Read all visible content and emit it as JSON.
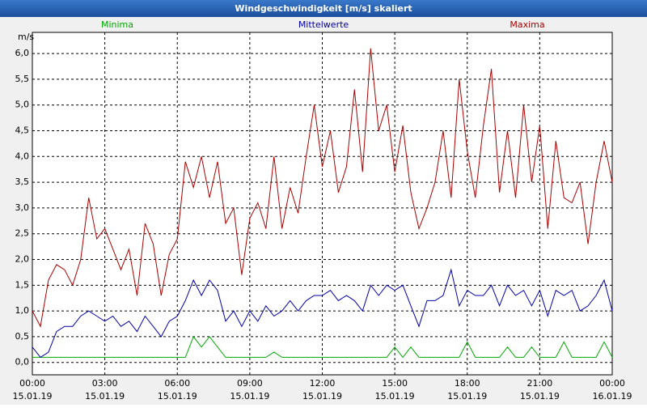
{
  "chart_data": {
    "type": "line",
    "title": "Windgeschwindigkeit [m/s] skaliert",
    "y_unit": "m/s",
    "x": [
      0,
      20,
      40,
      60,
      80,
      100,
      120,
      140,
      160,
      180,
      200,
      220,
      240,
      260,
      280,
      300,
      320,
      340,
      360,
      380,
      400,
      420,
      440,
      460,
      480,
      500,
      520,
      540,
      560,
      580,
      600,
      620,
      640,
      660,
      680,
      700,
      720,
      740,
      760,
      780,
      800,
      820,
      840,
      860,
      880,
      900,
      920,
      940,
      960,
      980,
      1000,
      1020,
      1040,
      1060,
      1080,
      1100,
      1120,
      1140,
      1160,
      1180,
      1200,
      1220,
      1240,
      1260,
      1280,
      1300,
      1320,
      1340,
      1360,
      1380,
      1400,
      1420,
      1440
    ],
    "xlim": [
      0,
      1440
    ],
    "xticks": [
      {
        "value": 0,
        "label": "00:00"
      },
      {
        "value": 180,
        "label": "03:00"
      },
      {
        "value": 360,
        "label": "06:00"
      },
      {
        "value": 540,
        "label": "09:00"
      },
      {
        "value": 720,
        "label": "12:00"
      },
      {
        "value": 900,
        "label": "15:00"
      },
      {
        "value": 1080,
        "label": "18:00"
      },
      {
        "value": 1260,
        "label": "21:00"
      },
      {
        "value": 1440,
        "label": "00:00"
      }
    ],
    "xtick_dates": [
      "15.01.19",
      "15.01.19",
      "15.01.19",
      "15.01.19",
      "15.01.19",
      "15.01.19",
      "15.01.19",
      "15.01.19",
      "16.01.19"
    ],
    "ylim": [
      -0.24,
      6.41
    ],
    "yticks": [
      {
        "value": 0,
        "label": "0,0"
      },
      {
        "value": 0.5,
        "label": "0,5"
      },
      {
        "value": 1,
        "label": "1,0"
      },
      {
        "value": 1.5,
        "label": "1,5"
      },
      {
        "value": 2,
        "label": "2,0"
      },
      {
        "value": 2.5,
        "label": "2,5"
      },
      {
        "value": 3,
        "label": "3,0"
      },
      {
        "value": 3.5,
        "label": "3,5"
      },
      {
        "value": 4,
        "label": "4,0"
      },
      {
        "value": 4.5,
        "label": "4,5"
      },
      {
        "value": 5,
        "label": "5,0"
      },
      {
        "value": 5.5,
        "label": "5,5"
      },
      {
        "value": 6,
        "label": "6,0"
      }
    ],
    "grid": true,
    "series": [
      {
        "name": "Minima",
        "color": "#00aa00",
        "values": [
          0.1,
          0.1,
          0.1,
          0.1,
          0.1,
          0.1,
          0.1,
          0.1,
          0.1,
          0.1,
          0.1,
          0.1,
          0.1,
          0.1,
          0.1,
          0.1,
          0.1,
          0.1,
          0.1,
          0.1,
          0.5,
          0.3,
          0.5,
          0.3,
          0.1,
          0.1,
          0.1,
          0.1,
          0.1,
          0.1,
          0.2,
          0.1,
          0.1,
          0.1,
          0.1,
          0.1,
          0.1,
          0.1,
          0.1,
          0.1,
          0.1,
          0.1,
          0.1,
          0.1,
          0.1,
          0.3,
          0.1,
          0.3,
          0.1,
          0.1,
          0.1,
          0.1,
          0.1,
          0.1,
          0.4,
          0.1,
          0.1,
          0.1,
          0.1,
          0.3,
          0.1,
          0.1,
          0.3,
          0.1,
          0.1,
          0.1,
          0.4,
          0.1,
          0.1,
          0.1,
          0.1,
          0.4,
          0.1
        ]
      },
      {
        "name": "Mittelwerte",
        "color": "#0000aa",
        "values": [
          0.3,
          0.1,
          0.2,
          0.6,
          0.7,
          0.7,
          0.9,
          1.0,
          0.9,
          0.8,
          0.9,
          0.7,
          0.8,
          0.6,
          0.9,
          0.7,
          0.5,
          0.8,
          0.9,
          1.2,
          1.6,
          1.3,
          1.6,
          1.4,
          0.8,
          1.0,
          0.7,
          1.0,
          0.8,
          1.1,
          0.9,
          1.0,
          1.2,
          1.0,
          1.2,
          1.3,
          1.3,
          1.4,
          1.2,
          1.3,
          1.2,
          1.0,
          1.5,
          1.3,
          1.5,
          1.4,
          1.5,
          1.1,
          0.7,
          1.2,
          1.2,
          1.3,
          1.8,
          1.1,
          1.4,
          1.3,
          1.3,
          1.5,
          1.1,
          1.5,
          1.3,
          1.4,
          1.1,
          1.4,
          0.9,
          1.4,
          1.3,
          1.4,
          1.0,
          1.1,
          1.3,
          1.6,
          1.0
        ]
      },
      {
        "name": "Maxima",
        "color": "#aa0000",
        "values": [
          1.0,
          0.7,
          1.6,
          1.9,
          1.8,
          1.5,
          2.0,
          3.2,
          2.4,
          2.6,
          2.2,
          1.8,
          2.2,
          1.3,
          2.7,
          2.3,
          1.3,
          2.1,
          2.4,
          3.9,
          3.4,
          4.0,
          3.2,
          3.9,
          2.7,
          3.0,
          1.7,
          2.8,
          3.1,
          2.6,
          4.0,
          2.6,
          3.4,
          2.9,
          4.0,
          5.0,
          3.8,
          4.5,
          3.3,
          3.8,
          5.3,
          3.7,
          6.1,
          4.5,
          5.0,
          3.7,
          4.6,
          3.3,
          2.6,
          3.0,
          3.5,
          4.5,
          3.2,
          5.5,
          4.1,
          3.2,
          4.6,
          5.7,
          3.3,
          4.5,
          3.2,
          5.0,
          3.5,
          4.6,
          2.6,
          4.3,
          3.2,
          3.1,
          3.5,
          2.3,
          3.5,
          4.3,
          3.5
        ]
      }
    ]
  }
}
